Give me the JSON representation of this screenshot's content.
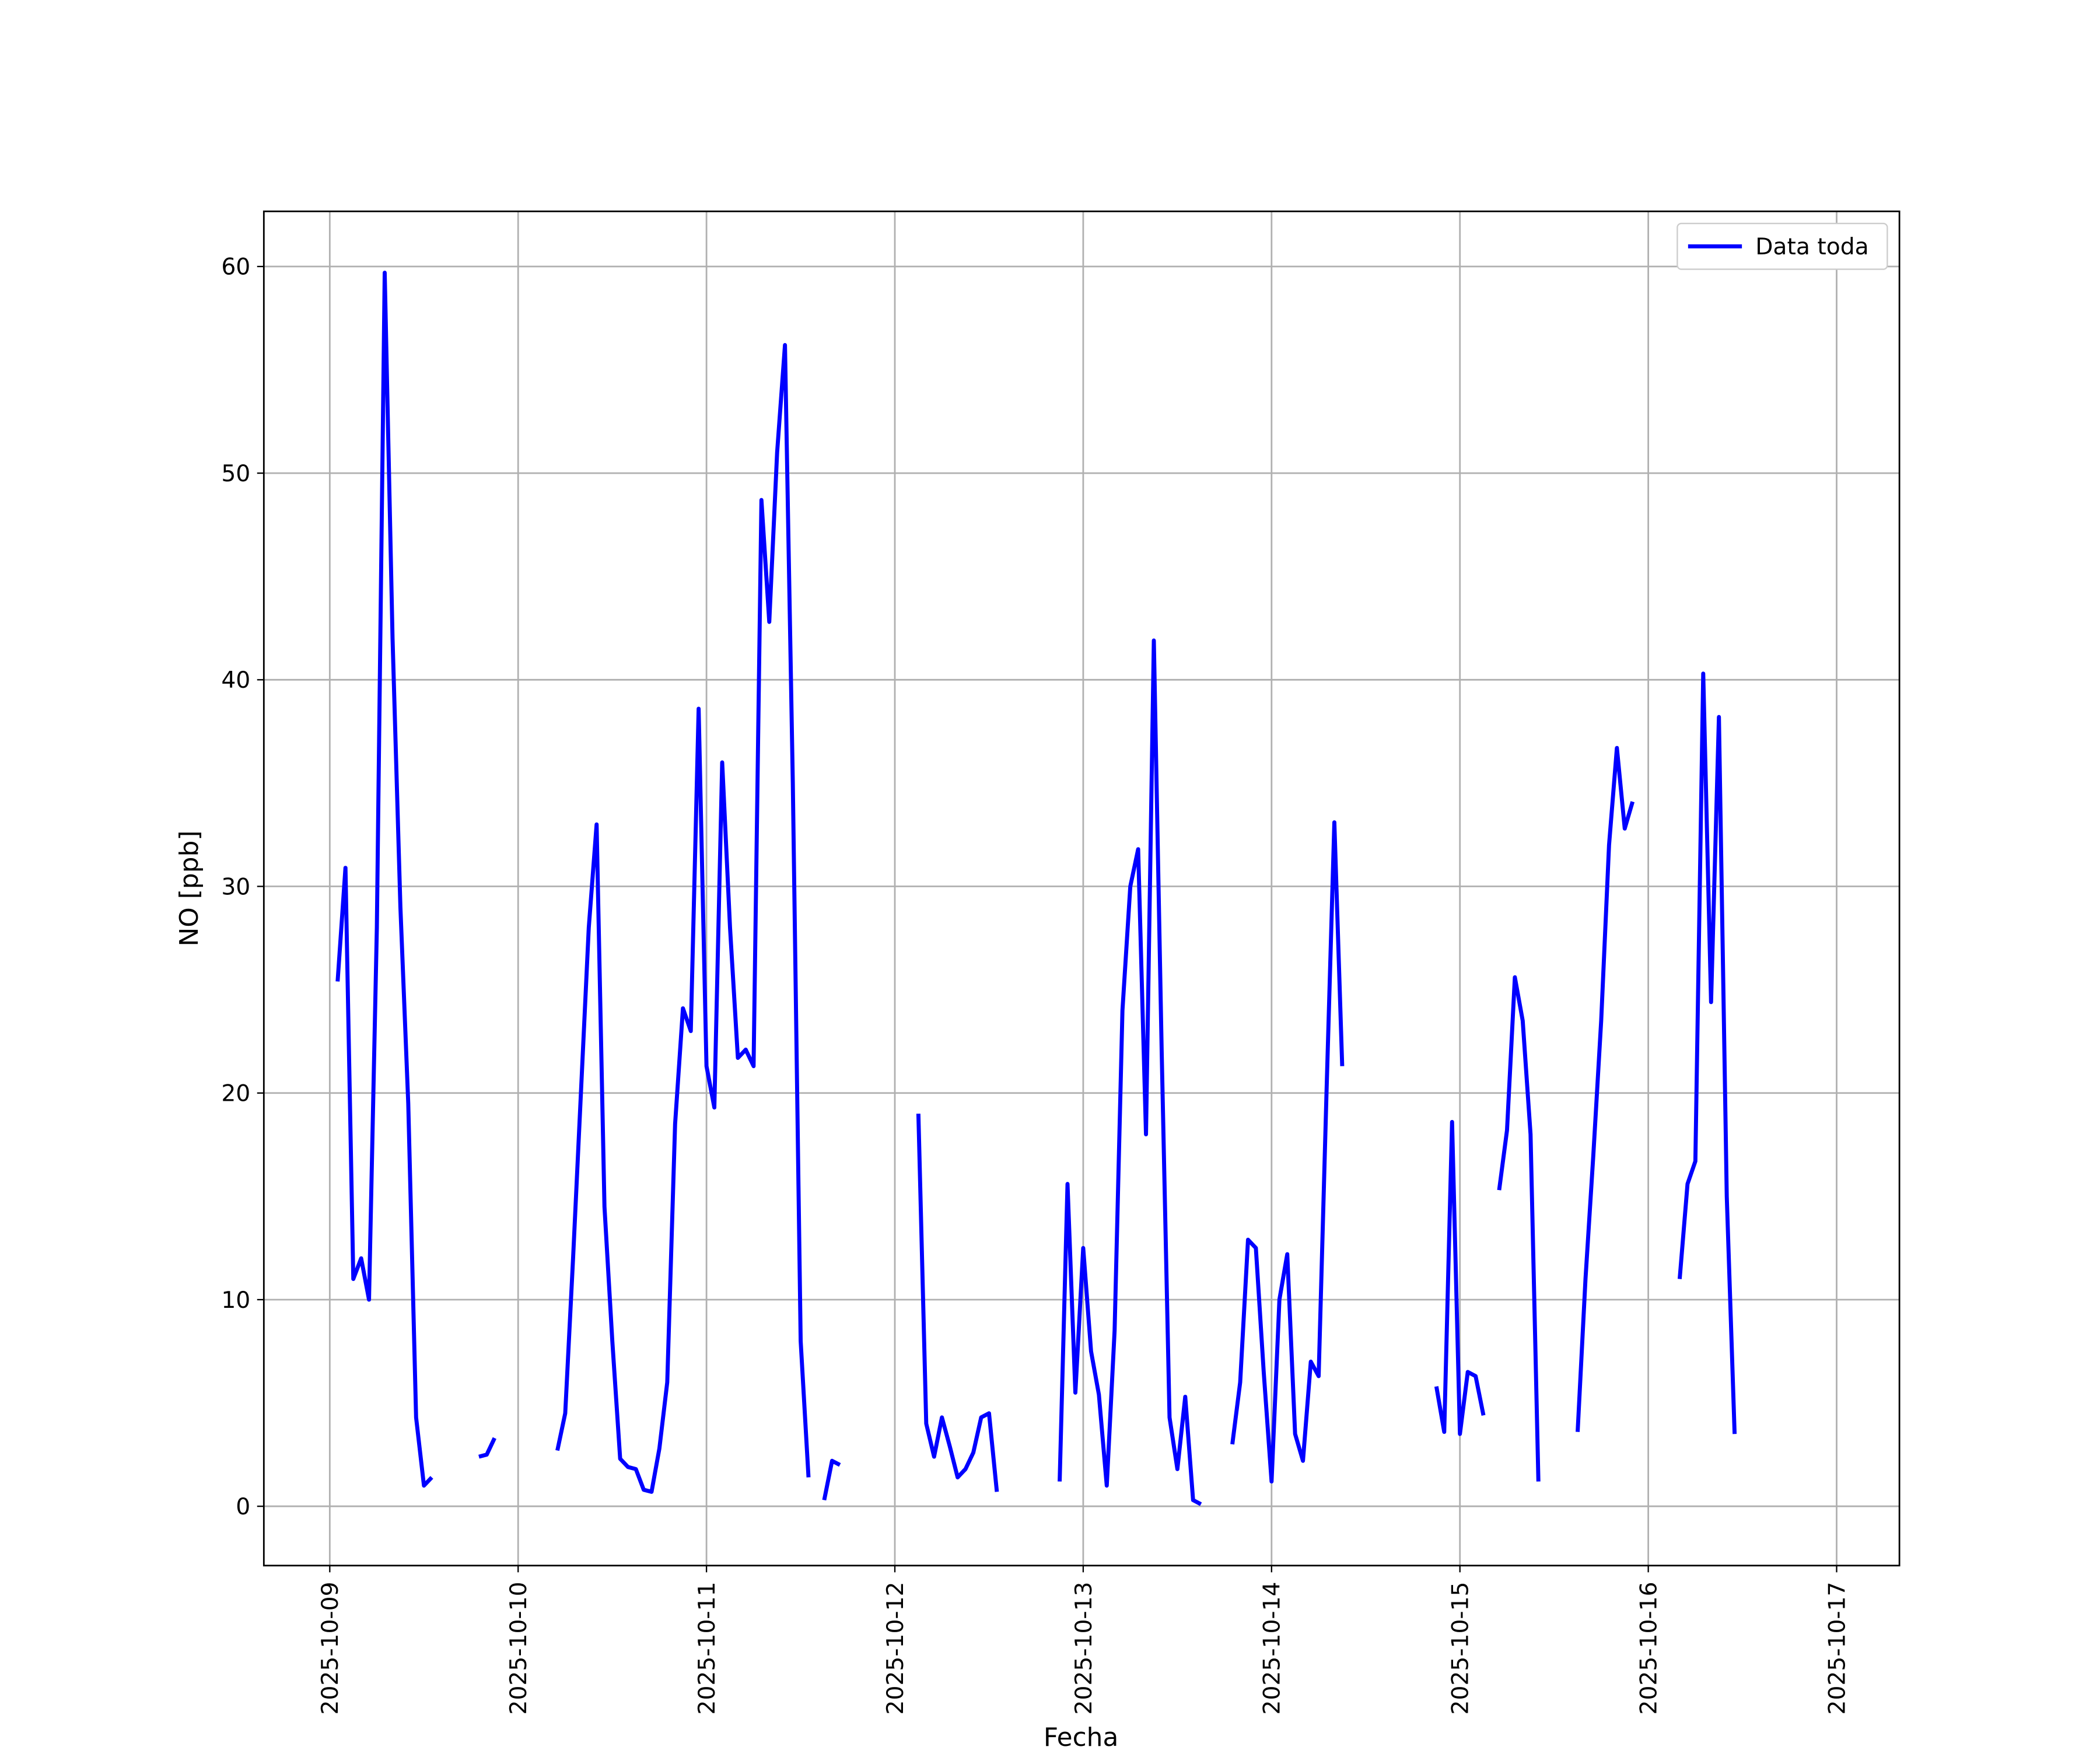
{
  "chart_data": {
    "type": "line",
    "x_label": "Fecha",
    "y_label": "NO [ppb]",
    "x": [
      "2025-10-09 01:00",
      "2025-10-09 02:00",
      "2025-10-09 03:00",
      "2025-10-09 04:00",
      "2025-10-09 05:00",
      "2025-10-09 06:00",
      "2025-10-09 07:00",
      "2025-10-09 08:00",
      "2025-10-09 09:00",
      "2025-10-09 10:00",
      "2025-10-09 11:00",
      "2025-10-09 12:00",
      "2025-10-09 13:00",
      "2025-10-09 16:00",
      "2025-10-09 19:00",
      "2025-10-09 20:00",
      "2025-10-09 21:00",
      "2025-10-10 01:00",
      "2025-10-10 05:00",
      "2025-10-10 06:00",
      "2025-10-10 07:00",
      "2025-10-10 08:00",
      "2025-10-10 09:00",
      "2025-10-10 10:00",
      "2025-10-10 11:00",
      "2025-10-10 12:00",
      "2025-10-10 13:00",
      "2025-10-10 14:00",
      "2025-10-10 15:00",
      "2025-10-10 16:00",
      "2025-10-10 17:00",
      "2025-10-10 18:00",
      "2025-10-10 19:00",
      "2025-10-10 20:00",
      "2025-10-10 21:00",
      "2025-10-10 22:00",
      "2025-10-10 23:00",
      "2025-10-11 00:00",
      "2025-10-11 01:00",
      "2025-10-11 02:00",
      "2025-10-11 03:00",
      "2025-10-11 04:00",
      "2025-10-11 05:00",
      "2025-10-11 06:00",
      "2025-10-11 07:00",
      "2025-10-11 08:00",
      "2025-10-11 09:00",
      "2025-10-11 10:00",
      "2025-10-11 11:00",
      "2025-10-11 12:00",
      "2025-10-11 13:00",
      "2025-10-11 14:00",
      "2025-10-11 15:00",
      "2025-10-11 16:00",
      "2025-10-11 17:00",
      "2025-10-11 22:00",
      "2025-10-12 03:00",
      "2025-10-12 04:00",
      "2025-10-12 05:00",
      "2025-10-12 06:00",
      "2025-10-12 07:00",
      "2025-10-12 08:00",
      "2025-10-12 09:00",
      "2025-10-12 10:00",
      "2025-10-12 11:00",
      "2025-10-12 12:00",
      "2025-10-12 13:00",
      "2025-10-12 17:00",
      "2025-10-12 21:00",
      "2025-10-12 22:00",
      "2025-10-12 23:00",
      "2025-10-13 00:00",
      "2025-10-13 01:00",
      "2025-10-13 02:00",
      "2025-10-13 03:00",
      "2025-10-13 04:00",
      "2025-10-13 05:00",
      "2025-10-13 06:00",
      "2025-10-13 07:00",
      "2025-10-13 08:00",
      "2025-10-13 09:00",
      "2025-10-13 10:00",
      "2025-10-13 11:00",
      "2025-10-13 12:00",
      "2025-10-13 13:00",
      "2025-10-13 14:00",
      "2025-10-13 15:00",
      "2025-10-13 17:00",
      "2025-10-13 19:00",
      "2025-10-13 20:00",
      "2025-10-13 21:00",
      "2025-10-13 22:00",
      "2025-10-13 23:00",
      "2025-10-14 00:00",
      "2025-10-14 01:00",
      "2025-10-14 02:00",
      "2025-10-14 03:00",
      "2025-10-14 04:00",
      "2025-10-14 05:00",
      "2025-10-14 06:00",
      "2025-10-14 07:00",
      "2025-10-14 08:00",
      "2025-10-14 09:00",
      "2025-10-14 15:00",
      "2025-10-14 21:00",
      "2025-10-14 22:00",
      "2025-10-14 23:00",
      "2025-10-15 00:00",
      "2025-10-15 01:00",
      "2025-10-15 02:00",
      "2025-10-15 03:00",
      "2025-10-15 04:00",
      "2025-10-15 05:00",
      "2025-10-15 06:00",
      "2025-10-15 07:00",
      "2025-10-15 08:00",
      "2025-10-15 09:00",
      "2025-10-15 10:00",
      "2025-10-15 12:00",
      "2025-10-15 15:00",
      "2025-10-15 16:00",
      "2025-10-15 17:00",
      "2025-10-15 18:00",
      "2025-10-15 19:00",
      "2025-10-15 20:00",
      "2025-10-15 21:00",
      "2025-10-15 22:00",
      "2025-10-16 01:00",
      "2025-10-16 04:00",
      "2025-10-16 05:00",
      "2025-10-16 06:00",
      "2025-10-16 07:00",
      "2025-10-16 08:00",
      "2025-10-16 09:00",
      "2025-10-16 10:00",
      "2025-10-16 11:00"
    ],
    "series": [
      {
        "name": "Data toda",
        "color": "#0000ff",
        "values": [
          25.4,
          30.9,
          11,
          12,
          10,
          28,
          59.7,
          42,
          29,
          19.5,
          4.3,
          1.0,
          1.4,
          null,
          2.4,
          2.5,
          3.3,
          null,
          2.7,
          4.5,
          12,
          20,
          28,
          33,
          14.5,
          8,
          2.3,
          1.9,
          1.8,
          0.8,
          0.7,
          2.8,
          6,
          18.5,
          24.1,
          23,
          38.6,
          21.3,
          19.3,
          36,
          28,
          21.7,
          22.1,
          21.3,
          48.7,
          42.8,
          51,
          56.2,
          35,
          8,
          1.4,
          null,
          0.3,
          2.2,
          2.0,
          null,
          19,
          4,
          2.4,
          4.3,
          2.9,
          1.4,
          1.8,
          2.6,
          4.3,
          4.5,
          0.7,
          null,
          1.2,
          15.6,
          5.5,
          12.5,
          7.5,
          5.4,
          1.0,
          8.5,
          24,
          30,
          31.8,
          18,
          41.9,
          22,
          4.3,
          1.8,
          5.3,
          0.3,
          0.1,
          null,
          3.0,
          6,
          12.9,
          12.5,
          6.5,
          1.2,
          10,
          12.2,
          3.5,
          2.2,
          7.0,
          6.3,
          20,
          33.1,
          21.3,
          null,
          5.8,
          3.6,
          18.6,
          3.5,
          6.5,
          6.3,
          4.4,
          null,
          15.3,
          18.2,
          25.6,
          23.5,
          18,
          1.2,
          null,
          3.6,
          11,
          17,
          23.5,
          32,
          36.7,
          32.8,
          34.1,
          null,
          11,
          15.6,
          16.7,
          40.3,
          24.4,
          38.2,
          15,
          3.5
        ]
      }
    ],
    "xlim": [
      "2025-10-08 15:36",
      "2025-10-17 08:00"
    ],
    "xticks": [
      "2025-10-09",
      "2025-10-10",
      "2025-10-11",
      "2025-10-12",
      "2025-10-13",
      "2025-10-14",
      "2025-10-15",
      "2025-10-16",
      "2025-10-17"
    ],
    "ylim": [
      -2.87,
      62.67
    ],
    "yticks": [
      0,
      10,
      20,
      30,
      40,
      50,
      60
    ],
    "grid": true,
    "legend": "upper right"
  }
}
